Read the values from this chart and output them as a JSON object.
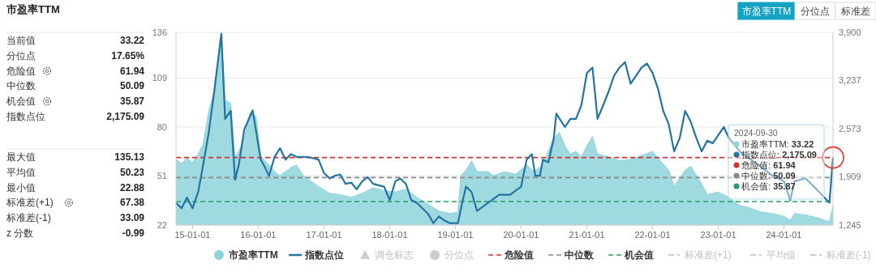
{
  "chart_data": [
    {
      "type": "other",
      "title": "市盈率TTM",
      "annotations": [
        "当前值",
        "33.22",
        "分位点",
        "17.65%",
        "危险值",
        "61.94",
        "中位数",
        "50.09",
        "机会值",
        "35.87",
        "指数点位",
        "2,175.09",
        "最大值",
        "135.13",
        "平均值",
        "50.23",
        "最小值",
        "22.88",
        "标准差(+1)",
        "67.38",
        "标准差(-1)",
        "33.09",
        "z 分数",
        "-0.99",
        "市盈率TTM",
        "分位点",
        "标准差"
      ]
    },
    {
      "type": "area",
      "xlim": [
        "2014-10-01",
        "2024-09-30"
      ],
      "xticks": [
        {
          "value": "2015-01-01",
          "label": "15-01-01"
        },
        {
          "value": "2016-01-01",
          "label": "16-01-01"
        },
        {
          "value": "2017-01-01",
          "label": "17-01-01"
        },
        {
          "value": "2018-01-01",
          "label": "18-01-01"
        },
        {
          "value": "2019-01-01",
          "label": "19-01-01"
        },
        {
          "value": "2020-01-01",
          "label": "20-01-01"
        },
        {
          "value": "2021-01-01",
          "label": "21-01-01"
        },
        {
          "value": "2022-01-01",
          "label": "22-01-01"
        },
        {
          "value": "2023-01-01",
          "label": "23-01-01"
        },
        {
          "value": "2024-01-01",
          "label": "24-01-01"
        }
      ],
      "ylim": [
        22,
        136
      ],
      "yticks": [
        22,
        51,
        80,
        109,
        136
      ],
      "y2lim": [
        1245,
        3900
      ],
      "y2ticks": [
        {
          "value": 1245,
          "label": "1,245"
        },
        {
          "value": 1909,
          "label": "1,909"
        },
        {
          "value": 2573,
          "label": "2,573"
        },
        {
          "value": 3237,
          "label": "3,237"
        },
        {
          "value": 3900,
          "label": "3,900"
        }
      ],
      "grid": "y",
      "legend": "bottom",
      "series": [
        {
          "name": "市盈率TTM",
          "type": "area",
          "color": "#8fd3dc",
          "x": [
            "2014-10-01",
            "2014-11-01",
            "2014-12-01",
            "2015-01-01",
            "2015-02-01",
            "2015-03-01",
            "2015-04-01",
            "2015-05-01",
            "2015-06-10",
            "2015-07-01",
            "2015-08-01",
            "2015-08-25",
            "2015-09-15",
            "2015-10-15",
            "2015-11-15",
            "2015-12-20",
            "2016-01-15",
            "2016-02-01",
            "2016-03-01",
            "2016-04-01",
            "2016-05-01",
            "2016-06-01",
            "2016-07-01",
            "2016-08-01",
            "2016-09-01",
            "2016-10-01",
            "2016-11-01",
            "2016-12-01",
            "2017-02-01",
            "2017-04-01",
            "2017-06-01",
            "2017-08-01",
            "2017-10-01",
            "2017-12-01",
            "2018-02-01",
            "2018-04-01",
            "2018-06-01",
            "2018-08-01",
            "2018-10-01",
            "2018-12-01",
            "2019-01-15",
            "2019-02-01",
            "2019-03-01",
            "2019-04-01",
            "2019-05-01",
            "2019-07-01",
            "2019-08-01",
            "2019-10-01",
            "2019-12-01",
            "2020-02-01",
            "2020-03-15",
            "2020-05-01",
            "2020-07-01",
            "2020-08-01",
            "2020-09-01",
            "2020-10-01",
            "2020-11-01",
            "2020-12-01",
            "2021-01-01",
            "2021-02-01",
            "2021-03-01",
            "2021-05-01",
            "2021-07-01",
            "2021-09-01",
            "2021-11-01",
            "2022-01-01",
            "2022-02-01",
            "2022-04-01",
            "2022-05-01",
            "2022-07-01",
            "2022-08-01",
            "2022-10-01",
            "2022-11-01",
            "2023-01-01",
            "2023-03-01",
            "2023-05-01",
            "2023-07-01",
            "2023-09-01",
            "2023-11-01",
            "2024-01-01",
            "2024-02-05",
            "2024-03-01",
            "2024-05-01",
            "2024-07-01",
            "2024-09-10",
            "2024-09-30"
          ],
          "values": [
            60.8,
            58.4,
            61.6,
            59,
            64,
            70,
            89.6,
            100.8,
            135.1,
            96,
            94,
            62.4,
            65.6,
            73.6,
            88,
            86.4,
            62.4,
            60.8,
            57.6,
            53.6,
            51.2,
            53.6,
            56,
            57.6,
            52,
            49.6,
            47.2,
            44.8,
            40.8,
            40,
            38.4,
            40.8,
            44,
            42.4,
            41.6,
            43.2,
            38.4,
            34.4,
            30.4,
            28.8,
            29.6,
            51.2,
            54.4,
            60,
            53.6,
            53.6,
            51.2,
            53.6,
            52,
            57.6,
            53.6,
            57.6,
            73.6,
            76.8,
            68.8,
            64,
            65.6,
            62.4,
            68.8,
            74.4,
            64,
            62.4,
            60,
            60.8,
            63.2,
            65.6,
            61.6,
            54.4,
            44.8,
            54.4,
            56.8,
            46.4,
            40,
            41.6,
            38.4,
            33.6,
            32,
            29.6,
            28.8,
            27.2,
            24.8,
            28.8,
            28,
            26.4,
            24,
            33.22
          ]
        },
        {
          "name": "指数点位",
          "type": "line",
          "axis": "y2",
          "color": "#2473a0",
          "x": [
            "2014-10-01",
            "2014-11-01",
            "2014-12-01",
            "2015-01-01",
            "2015-02-01",
            "2015-03-01",
            "2015-04-01",
            "2015-05-01",
            "2015-06-10",
            "2015-07-01",
            "2015-08-01",
            "2015-08-25",
            "2015-09-15",
            "2015-10-15",
            "2015-12-01",
            "2016-01-15",
            "2016-02-01",
            "2016-03-01",
            "2016-04-01",
            "2016-05-01",
            "2016-06-01",
            "2016-07-01",
            "2016-08-01",
            "2016-10-01",
            "2016-12-01",
            "2017-01-01",
            "2017-02-01",
            "2017-03-01",
            "2017-04-01",
            "2017-05-01",
            "2017-06-01",
            "2017-07-01",
            "2017-08-01",
            "2017-09-01",
            "2017-10-01",
            "2017-12-01",
            "2018-01-01",
            "2018-02-01",
            "2018-03-01",
            "2018-04-01",
            "2018-05-01",
            "2018-06-01",
            "2018-07-01",
            "2018-08-01",
            "2018-09-01",
            "2018-10-01",
            "2018-11-01",
            "2018-12-01",
            "2019-01-15",
            "2019-02-01",
            "2019-03-01",
            "2019-04-01",
            "2019-05-01",
            "2019-07-01",
            "2019-09-01",
            "2019-11-01",
            "2020-01-01",
            "2020-02-01",
            "2020-03-01",
            "2020-03-20",
            "2020-04-15",
            "2020-05-01",
            "2020-06-01",
            "2020-07-01",
            "2020-07-15",
            "2020-09-01",
            "2020-10-01",
            "2020-11-01",
            "2020-12-01",
            "2021-01-01",
            "2021-02-01",
            "2021-03-01",
            "2021-04-01",
            "2021-05-01",
            "2021-06-01",
            "2021-07-01",
            "2021-08-01",
            "2021-09-01",
            "2021-10-01",
            "2021-11-01",
            "2021-12-01",
            "2022-01-01",
            "2022-02-01",
            "2022-03-01",
            "2022-04-01",
            "2022-05-01",
            "2022-06-01",
            "2022-07-01",
            "2022-08-01",
            "2022-09-01",
            "2022-10-01",
            "2022-11-01",
            "2022-12-01",
            "2023-02-01",
            "2023-03-01",
            "2023-05-01",
            "2023-07-01",
            "2023-09-01",
            "2023-11-01",
            "2024-01-01",
            "2024-02-05",
            "2024-03-01",
            "2024-05-01",
            "2024-07-01",
            "2024-09-10",
            "2024-09-30"
          ],
          "values": [
            1551,
            1476,
            1625,
            1476,
            1700,
            2073,
            2520,
            3080,
            3881,
            2707,
            2819,
            1868,
            2073,
            2558,
            2826,
            2147,
            2073,
            1924,
            2185,
            2304,
            2147,
            2222,
            2185,
            2185,
            2147,
            1961,
            1886,
            1924,
            1942,
            1812,
            1830,
            1737,
            1849,
            1905,
            1812,
            1774,
            1588,
            1849,
            1886,
            1812,
            1588,
            1551,
            1476,
            1402,
            1271,
            1364,
            1308,
            1271,
            1271,
            1476,
            1774,
            1700,
            1439,
            1551,
            1663,
            1663,
            1774,
            2147,
            2222,
            1924,
            1924,
            2147,
            2110,
            2445,
            2781,
            2595,
            2707,
            2707,
            2893,
            3341,
            3415,
            2707,
            2893,
            3080,
            3303,
            3415,
            3490,
            3192,
            3303,
            3415,
            3471,
            3341,
            3117,
            2819,
            2632,
            2259,
            2445,
            2819,
            2670,
            2445,
            2259,
            2408,
            2371,
            2595,
            2445,
            2259,
            2147,
            2035,
            1924,
            1849,
            1588,
            1849,
            1886,
            1737,
            1551,
            2175.09
          ]
        }
      ],
      "ref_lines": [
        {
          "axis": "y",
          "value": 61.94,
          "label": "危险值",
          "color": "#d62f2f",
          "line_style": "dashed"
        },
        {
          "axis": "y",
          "value": 50.09,
          "label": "中位数",
          "color": "#888888",
          "line_style": "dashed"
        },
        {
          "axis": "y",
          "value": 35.87,
          "label": "机会值",
          "color": "#1fa060",
          "line_style": "dashed"
        }
      ],
      "annotations": [
        "2024-09-30",
        "市盈率TTM: 33.22",
        "指数点位: 2,175.09",
        "危险值: 61.94",
        "中位数: 50.09",
        "机会值: 35.87",
        "调仓标志",
        "分位点",
        "标准差(+1)",
        "平均值",
        "标准差(-1)"
      ]
    }
  ]
}
